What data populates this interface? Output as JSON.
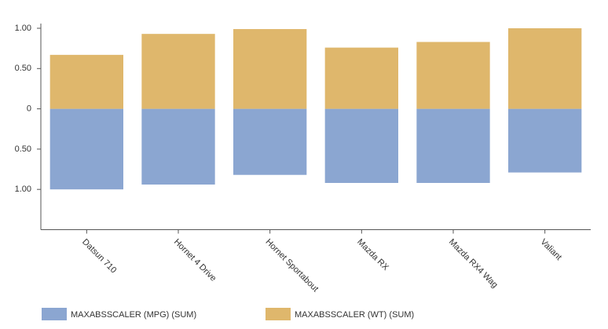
{
  "chart_data": {
    "type": "bar",
    "stacked": true,
    "categories": [
      "Datsun 710",
      "Hornet 4 Drive",
      "Hornet Sportabout",
      "Mazda RX",
      "Mazda RX4 Wag",
      "Valiant"
    ],
    "series": [
      {
        "name": "MAXABSSCALER (MPG) (SUM)",
        "color": "#8ba6d1",
        "values": [
          -1,
          -0.94,
          -0.82,
          -0.92,
          -0.92,
          -0.79
        ]
      },
      {
        "name": "MAXABSSCALER (WT) (SUM)",
        "color": "#dfb76c",
        "values": [
          0.67,
          0.93,
          0.99,
          0.76,
          0.83,
          1
        ]
      }
    ],
    "ylim": [
      -1.5,
      1
    ],
    "yticks": [
      {
        "value": 1,
        "label": "1.00"
      },
      {
        "value": 0.5,
        "label": "0.50"
      },
      0,
      {
        "value": -0.5,
        "label": "0.50"
      },
      {
        "value": -1,
        "label": "1.00"
      }
    ],
    "legend": "bottom"
  }
}
